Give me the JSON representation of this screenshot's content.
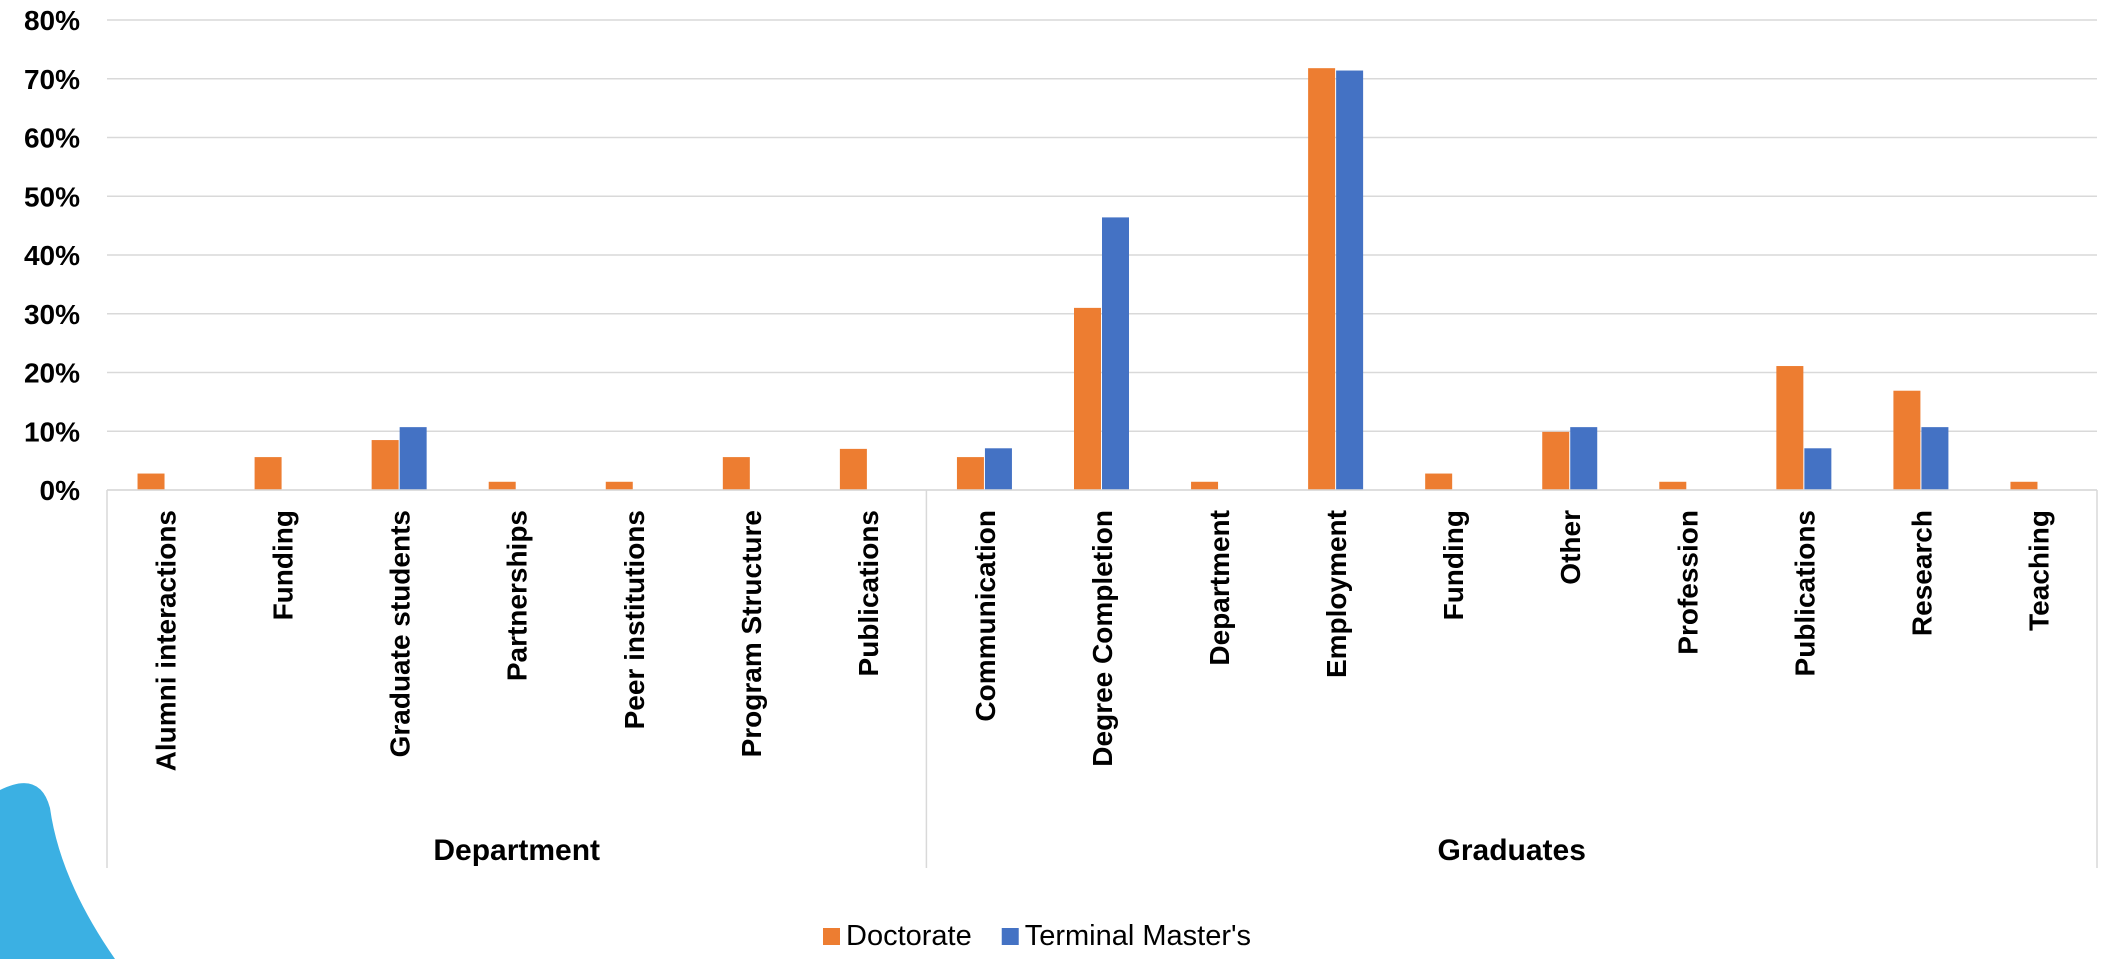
{
  "chart_data": {
    "type": "bar",
    "title": "",
    "xlabel": "",
    "ylabel": "",
    "ylim": [
      0,
      80
    ],
    "y_ticks": [
      "0%",
      "10%",
      "20%",
      "30%",
      "40%",
      "50%",
      "60%",
      "70%",
      "80%"
    ],
    "grid": true,
    "legend_position": "bottom",
    "groups": [
      {
        "name": "Department",
        "categories": [
          "Alumni interactions",
          "Funding",
          "Graduate students",
          "Partnerships",
          "Peer institutions",
          "Program Structure",
          "Publications"
        ]
      },
      {
        "name": "Graduates",
        "categories": [
          "Communication",
          "Degree Completion",
          "Department",
          "Employment",
          "Funding",
          "Other",
          "Profession",
          "Publications",
          "Research",
          "Teaching"
        ]
      }
    ],
    "series": [
      {
        "name": "Doctorate",
        "color": "#ED7D31",
        "values": [
          2.8,
          5.6,
          8.5,
          1.4,
          1.4,
          5.6,
          7.0,
          5.6,
          31.0,
          1.4,
          71.8,
          2.8,
          9.9,
          1.4,
          21.1,
          16.9,
          1.4
        ]
      },
      {
        "name": "Terminal Master's",
        "color": "#4472C4",
        "values": [
          0,
          0,
          10.7,
          0,
          0,
          0,
          0,
          7.1,
          46.4,
          0,
          71.4,
          0,
          10.7,
          0,
          7.1,
          10.7,
          0
        ]
      }
    ]
  }
}
